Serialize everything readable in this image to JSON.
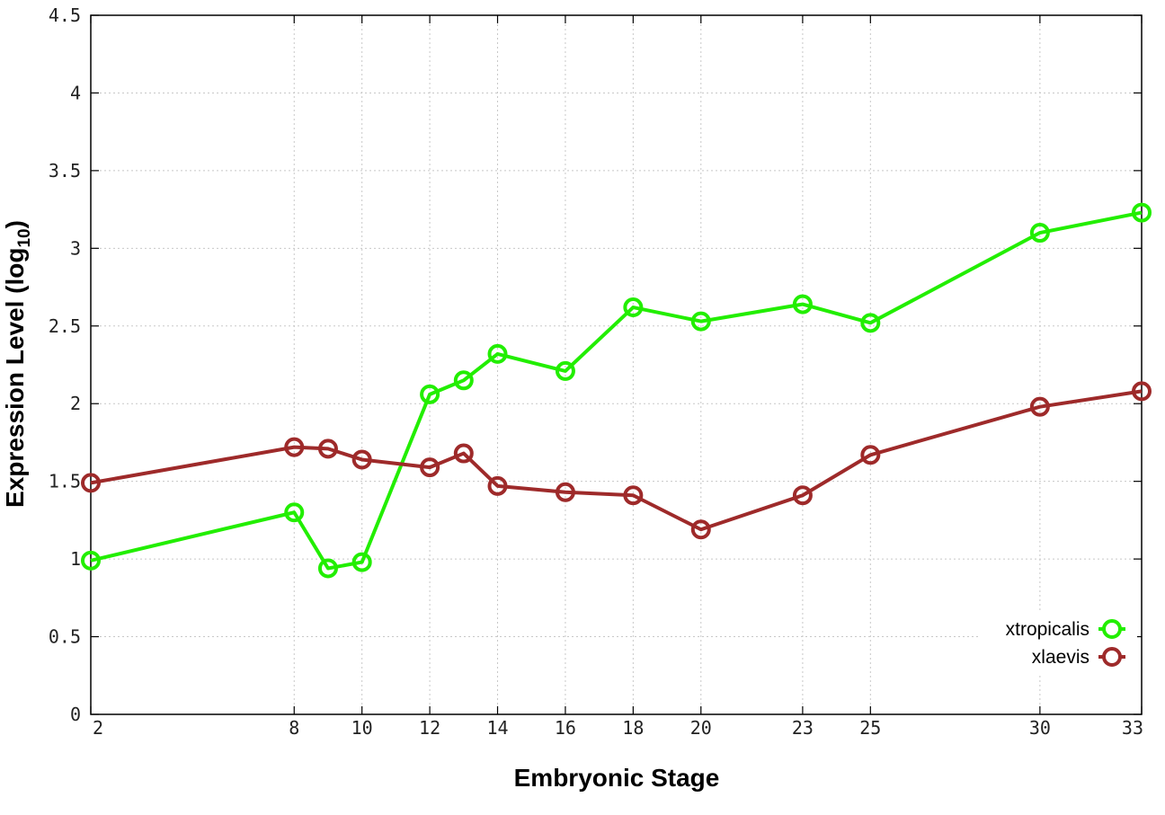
{
  "chart_data": {
    "type": "line",
    "xlabel": "Embryonic Stage",
    "ylabel": "Expression Level (log",
    "ylabel_subscript": "10",
    "ylabel_close": ")",
    "x_ticks": [
      2,
      8,
      10,
      12,
      14,
      16,
      18,
      20,
      23,
      25,
      30,
      33
    ],
    "y_ticks": [
      "0",
      "0.5",
      "1",
      "1.5",
      "2",
      "2.5",
      "3",
      "3.5",
      "4",
      "4.5"
    ],
    "ylim": [
      0,
      4.5
    ],
    "xlim": [
      2,
      33
    ],
    "grid": true,
    "legend_position": "bottom-right",
    "series": [
      {
        "name": "xtropicalis",
        "color": "#22ee00",
        "x": [
          2,
          8,
          9,
          10,
          12,
          13,
          14,
          16,
          18,
          20,
          23,
          25,
          30,
          33
        ],
        "y": [
          0.99,
          1.3,
          0.94,
          0.98,
          2.06,
          2.15,
          2.32,
          2.21,
          2.62,
          2.53,
          2.64,
          2.52,
          3.1,
          3.23
        ]
      },
      {
        "name": "xlaevis",
        "color": "#9e2a2a",
        "x": [
          2,
          8,
          9,
          10,
          12,
          13,
          14,
          16,
          18,
          20,
          23,
          25,
          30,
          33
        ],
        "y": [
          1.49,
          1.72,
          1.71,
          1.64,
          1.59,
          1.68,
          1.47,
          1.43,
          1.41,
          1.19,
          1.41,
          1.67,
          1.98,
          2.08
        ]
      }
    ]
  }
}
